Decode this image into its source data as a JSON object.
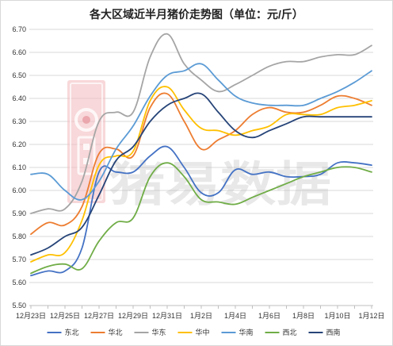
{
  "chart_data": {
    "type": "line",
    "title": "各大区域近半月猪价走势图（单位：元/斤）",
    "xlabel": "",
    "ylabel": "",
    "ylim": [
      5.5,
      6.7
    ],
    "yticks": [
      "5.50",
      "5.60",
      "5.70",
      "5.80",
      "5.90",
      "6.00",
      "6.10",
      "6.20",
      "6.30",
      "6.40",
      "6.50",
      "6.60",
      "6.70"
    ],
    "x": [
      "12月23日",
      "12月24日",
      "12月25日",
      "12月26日",
      "12月27日",
      "12月28日",
      "12月29日",
      "12月30日",
      "12月31日",
      "1月1日",
      "1月2日",
      "1月3日",
      "1月4日",
      "1月5日",
      "1月6日",
      "1月7日",
      "1月8日",
      "1月9日",
      "1月10日",
      "1月11日",
      "1月12日"
    ],
    "xticks": [
      "12月23日",
      "12月25日",
      "12月27日",
      "12月29日",
      "12月31日",
      "1月2日",
      "1月4日",
      "1月6日",
      "1月8日",
      "1月10日",
      "1月12日"
    ],
    "grid": true,
    "legend_position": "bottom",
    "series": [
      {
        "name": "东北",
        "color": "#4472c4",
        "values": [
          5.63,
          5.65,
          5.65,
          5.75,
          6.08,
          6.08,
          6.08,
          6.15,
          6.19,
          6.1,
          5.99,
          5.99,
          6.09,
          6.07,
          6.08,
          6.06,
          6.06,
          6.07,
          6.12,
          6.12,
          6.11
        ]
      },
      {
        "name": "华北",
        "color": "#ed7d31",
        "values": [
          5.81,
          5.86,
          5.85,
          5.93,
          6.16,
          6.18,
          6.15,
          6.36,
          6.42,
          6.3,
          6.18,
          6.22,
          6.26,
          6.33,
          6.36,
          6.34,
          6.34,
          6.37,
          6.41,
          6.4,
          6.37
        ]
      },
      {
        "name": "华东",
        "color": "#a5a5a5",
        "values": [
          5.9,
          5.92,
          5.92,
          6.04,
          6.3,
          6.34,
          6.34,
          6.58,
          6.68,
          6.55,
          6.48,
          6.43,
          6.46,
          6.5,
          6.54,
          6.56,
          6.56,
          6.58,
          6.59,
          6.59,
          6.63
        ]
      },
      {
        "name": "华中",
        "color": "#ffc000",
        "values": [
          5.69,
          5.72,
          5.73,
          5.87,
          6.11,
          6.15,
          6.17,
          6.39,
          6.45,
          6.35,
          6.27,
          6.26,
          6.24,
          6.26,
          6.28,
          6.33,
          6.33,
          6.33,
          6.36,
          6.37,
          6.39
        ]
      },
      {
        "name": "华南",
        "color": "#5b9bd5",
        "values": [
          6.07,
          6.07,
          6.0,
          5.96,
          6.04,
          6.18,
          6.28,
          6.41,
          6.5,
          6.52,
          6.55,
          6.48,
          6.41,
          6.38,
          6.37,
          6.37,
          6.37,
          6.4,
          6.43,
          6.47,
          6.52
        ]
      },
      {
        "name": "西北",
        "color": "#70ad47",
        "values": [
          5.64,
          5.67,
          5.68,
          5.66,
          5.78,
          5.86,
          5.88,
          6.06,
          6.12,
          6.06,
          5.96,
          5.95,
          5.94,
          5.97,
          6.0,
          6.03,
          6.06,
          6.08,
          6.1,
          6.1,
          6.08
        ]
      },
      {
        "name": "西南",
        "color": "#264478",
        "values": [
          5.72,
          5.75,
          5.8,
          5.84,
          5.98,
          6.13,
          6.19,
          6.3,
          6.37,
          6.4,
          6.42,
          6.34,
          6.26,
          6.23,
          6.26,
          6.29,
          6.32,
          6.32,
          6.32,
          6.32,
          6.32
        ]
      }
    ]
  },
  "watermark": {
    "text": "猪易数据",
    "logo_color": "#f2b8bc",
    "logo_dark": "#e79ca2"
  }
}
